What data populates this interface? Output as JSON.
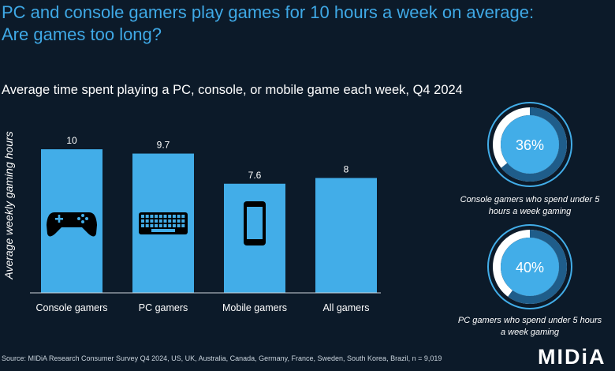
{
  "title_line1": "PC and console gamers play games for 10 hours a week on average:",
  "title_line2": "Are games too long?",
  "subtitle": "Average time spent playing a PC, console, or mobile game each week, Q4 2024",
  "chart_data": {
    "type": "bar",
    "categories": [
      "Console gamers",
      "PC gamers",
      "Mobile gamers",
      "All gamers"
    ],
    "values": [
      10,
      9.7,
      7.6,
      8
    ],
    "value_labels": [
      "10",
      "9.7",
      "7.6",
      "8"
    ],
    "icons": [
      "gamepad-icon",
      "keyboard-icon",
      "smartphone-icon",
      ""
    ],
    "ylabel": "Average weekly gaming hours",
    "ylim": [
      0,
      10.5
    ],
    "grid": false,
    "bar_color": "#42ade8"
  },
  "donuts": [
    {
      "value": 36,
      "label": "36%",
      "caption_line1": "Console gamers who spend under 5",
      "caption_line2": "hours a week gaming"
    },
    {
      "value": 40,
      "label": "40%",
      "caption_line1": "PC gamers who spend under 5 hours",
      "caption_line2": "a week gaming"
    }
  ],
  "colors": {
    "background": "#0c1a29",
    "accent": "#42ade8",
    "ring_dark": "#1f5d8a",
    "ring_remainder": "#ffffff"
  },
  "source": "Source: MIDiA Research Consumer Survey Q4 2024, US, UK, Australia, Canada, Germany, France, Sweden, South Korea, Brazil, n = 9,019",
  "logo": "MIDiA"
}
